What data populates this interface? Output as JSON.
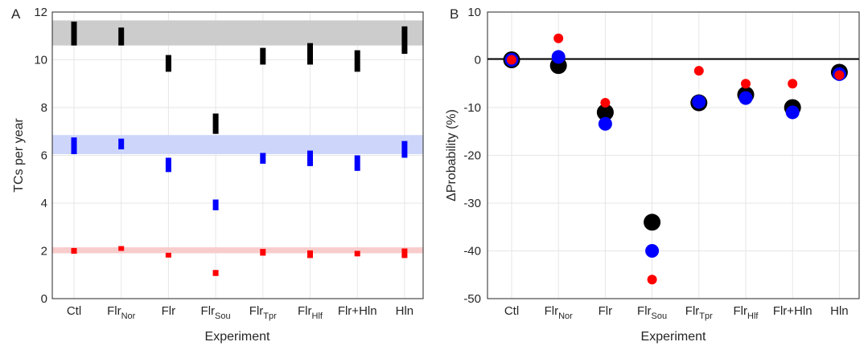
{
  "categories": [
    {
      "main": "Ctl",
      "sub": ""
    },
    {
      "main": "Flr",
      "sub": "Nor"
    },
    {
      "main": "Flr",
      "sub": ""
    },
    {
      "main": "Flr",
      "sub": "Sou"
    },
    {
      "main": "Flr",
      "sub": "Tpr"
    },
    {
      "main": "Flr",
      "sub": "Hlf"
    },
    {
      "main": "Flr+Hln",
      "sub": ""
    },
    {
      "main": "Hln",
      "sub": ""
    }
  ],
  "colors": {
    "black": "#000000",
    "blue": "#0000ff",
    "red": "#ff0000",
    "band_black": "#cccccc",
    "band_blue": "#cdd6fa",
    "band_red": "#f9cccc"
  },
  "chart_data": [
    {
      "panel": "A",
      "type": "errorbar",
      "xlabel": "Experiment",
      "ylabel": "TCs per year",
      "ylim": [
        0,
        12
      ],
      "yticks": [
        0,
        2,
        4,
        6,
        8,
        10,
        12
      ],
      "grid": true,
      "bands": [
        {
          "color": "black",
          "range": [
            10.6,
            11.65
          ]
        },
        {
          "color": "blue",
          "range": [
            6.05,
            6.85
          ]
        },
        {
          "color": "red",
          "range": [
            1.9,
            2.15
          ]
        }
      ],
      "series": [
        {
          "color": "black",
          "ranges": [
            [
              10.6,
              11.6
            ],
            [
              10.6,
              11.35
            ],
            [
              9.5,
              10.2
            ],
            [
              6.9,
              7.75
            ],
            [
              9.8,
              10.5
            ],
            [
              9.8,
              10.7
            ],
            [
              9.5,
              10.4
            ],
            [
              10.25,
              11.4
            ]
          ]
        },
        {
          "color": "blue",
          "ranges": [
            [
              6.05,
              6.75
            ],
            [
              6.25,
              6.7
            ],
            [
              5.3,
              5.9
            ],
            [
              3.7,
              4.15
            ],
            [
              5.65,
              6.1
            ],
            [
              5.55,
              6.2
            ],
            [
              5.35,
              6.0
            ],
            [
              5.9,
              6.6
            ]
          ]
        },
        {
          "color": "red",
          "ranges": [
            [
              1.88,
              2.12
            ],
            [
              2.0,
              2.2
            ],
            [
              1.72,
              1.92
            ],
            [
              0.95,
              1.2
            ],
            [
              1.8,
              2.08
            ],
            [
              1.7,
              2.02
            ],
            [
              1.77,
              2.0
            ],
            [
              1.7,
              2.1
            ]
          ]
        }
      ]
    },
    {
      "panel": "B",
      "type": "scatter",
      "xlabel": "Experiment",
      "ylabel": "ΔProbability (%)",
      "ylim": [
        -50,
        10
      ],
      "yticks": [
        10,
        0,
        -10,
        -20,
        -30,
        -40,
        -50
      ],
      "grid": true,
      "zero_line": true,
      "series": [
        {
          "color": "black",
          "size": "large",
          "values": [
            0,
            -1.2,
            -11,
            -34,
            -9,
            -7.3,
            -10,
            -2.6
          ]
        },
        {
          "color": "blue",
          "size": "medium",
          "values": [
            0,
            0.6,
            -13.4,
            -40,
            -8.8,
            -8,
            -11,
            -3
          ]
        },
        {
          "color": "red",
          "size": "small",
          "values": [
            0,
            4.5,
            -9,
            -46,
            -2.3,
            -5,
            -5,
            -3.2
          ]
        }
      ]
    }
  ]
}
